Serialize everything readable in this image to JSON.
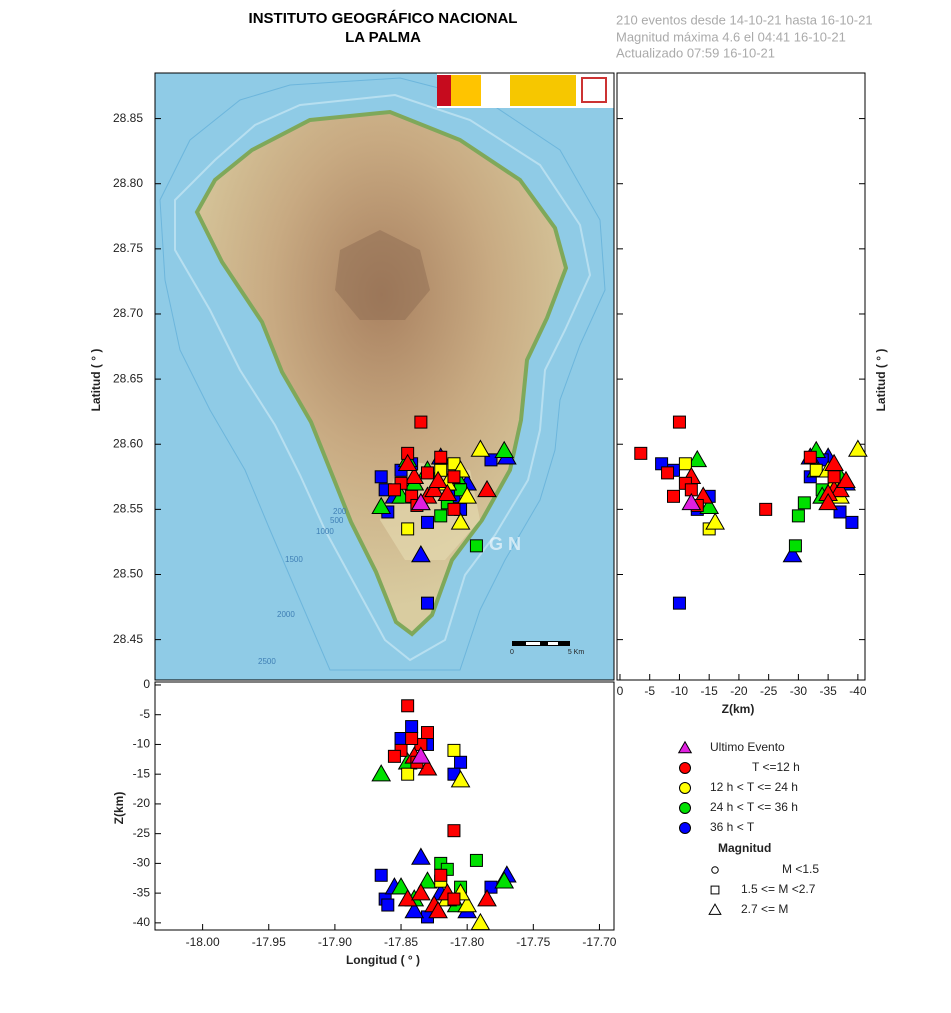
{
  "chart_data": {
    "type": "scatter",
    "title": "INSTITUTO GEOGRÁFICO NACIONAL",
    "subtitle": "LA PALMA",
    "info": [
      "210 eventos desde 14-10-21 hasta 16-10-21",
      "Magnitud máxima 4.6 el 04:41 16-10-21",
      "Actualizado   07:59  16-10-21"
    ],
    "xlabel": "Longitud ( ° )",
    "ylabel": "Latitud ( ° )",
    "zlabel": "Z(km)",
    "xlim": [
      -18.036,
      -17.689
    ],
    "ylim": [
      28.419,
      28.885
    ],
    "zlim": [
      0.5,
      -41.2
    ],
    "xticks": [
      {
        "value": -18,
        "label": "-18.00"
      },
      -17.95,
      {
        "value": -17.9,
        "label": "-17.90"
      },
      -17.85,
      {
        "value": -17.8,
        "label": "-17.80"
      },
      -17.75,
      {
        "value": -17.7,
        "label": "-17.70"
      }
    ],
    "yticks": [
      28.45,
      {
        "value": 28.5,
        "label": "28.50"
      },
      28.55,
      {
        "value": 28.6,
        "label": "28.60"
      },
      28.65,
      {
        "value": 28.7,
        "label": "28.70"
      },
      28.75,
      {
        "value": 28.8,
        "label": "28.80"
      },
      28.85
    ],
    "zticks": [
      0,
      -5,
      -10,
      -15,
      -20,
      -25,
      -30,
      -35,
      -40
    ],
    "series": [
      {
        "name": "36 h <  T",
        "color": "#0000ff",
        "lon": [
          -17.835,
          -17.83,
          -17.865,
          -17.862,
          -17.82,
          -17.782,
          -17.77,
          -17.85,
          -17.842,
          -17.805,
          -17.8,
          -17.86,
          -17.83,
          -17.855,
          -17.81,
          -17.84
        ],
        "lat": [
          28.515,
          28.478,
          28.575,
          28.565,
          28.59,
          28.588,
          28.59,
          28.58,
          28.585,
          28.55,
          28.57,
          28.548,
          28.54,
          28.56,
          28.56,
          28.57
        ],
        "depth": [
          -29,
          -10,
          -32,
          -36,
          -35,
          -34,
          -32,
          -9,
          -7,
          -13,
          -38,
          -37,
          -39,
          -34,
          -15,
          -38
        ],
        "marker": [
          "triangle",
          "square",
          "square",
          "square",
          "triangle",
          "square",
          "triangle",
          "square",
          "square",
          "square",
          "triangle",
          "square",
          "square",
          "triangle",
          "square",
          "triangle"
        ]
      },
      {
        "name": "24 h  < T <= 36 h",
        "color": "#00e000",
        "lon": [
          -17.772,
          -17.793,
          -17.865,
          -17.845,
          -17.82,
          -17.83,
          -17.808,
          -17.805,
          -17.84,
          -17.815,
          -17.85
        ],
        "lat": [
          28.595,
          28.522,
          28.552,
          28.588,
          28.545,
          28.58,
          28.575,
          28.565,
          28.57,
          28.555,
          28.56
        ],
        "depth": [
          -33,
          -29.5,
          -15,
          -13,
          -30,
          -33,
          -37,
          -34,
          -36,
          -31,
          -34
        ],
        "marker": [
          "triangle",
          "square",
          "triangle",
          "triangle",
          "square",
          "triangle",
          "triangle",
          "square",
          "triangle",
          "square",
          "triangle"
        ]
      },
      {
        "name": "12 h  < T <= 24 h",
        "color": "#ffff00",
        "lon": [
          -17.79,
          -17.845,
          -17.805,
          -17.8,
          -17.81,
          -17.815,
          -17.82,
          -17.805
        ],
        "lat": [
          28.596,
          28.535,
          28.54,
          28.56,
          28.585,
          28.57,
          28.58,
          28.58
        ],
        "depth": [
          -40,
          -15,
          -16,
          -37,
          -11,
          -36,
          -33,
          -35
        ],
        "marker": [
          "triangle",
          "square",
          "triangle",
          "triangle",
          "square",
          "triangle",
          "square",
          "triangle"
        ]
      },
      {
        "name": "T <=12 h",
        "color": "#ff0000",
        "lon": [
          -17.835,
          -17.845,
          -17.81,
          -17.785,
          -17.82,
          -17.84,
          -17.83,
          -17.825,
          -17.85,
          -17.842,
          -17.845,
          -17.822,
          -17.83,
          -17.838,
          -17.815,
          -17.855,
          -17.835,
          -17.81
        ],
        "lat": [
          28.617,
          28.593,
          28.55,
          28.565,
          28.59,
          28.575,
          28.56,
          28.565,
          28.57,
          28.56,
          28.585,
          28.572,
          28.578,
          28.553,
          28.562,
          28.565,
          28.555,
          28.575
        ],
        "depth": [
          -10,
          -3.5,
          -24.5,
          -36,
          -32,
          -12,
          -14,
          -37,
          -11,
          -9,
          -36,
          -38,
          -8,
          -13,
          -35,
          -12,
          -35,
          -36
        ],
        "marker": [
          "square",
          "square",
          "square",
          "triangle",
          "square",
          "triangle",
          "triangle",
          "triangle",
          "square",
          "square",
          "triangle",
          "triangle",
          "square",
          "square",
          "triangle",
          "square",
          "triangle",
          "square"
        ]
      },
      {
        "name": "Ultimo Evento",
        "color": "#e020e0",
        "lon": [
          -17.835
        ],
        "lat": [
          28.555
        ],
        "depth": [
          -12
        ],
        "marker": [
          "triangle"
        ]
      }
    ],
    "magnitude_title": "Magnitud",
    "magnitude_legend": [
      {
        "label": "M <1.5",
        "marker": "circle"
      },
      {
        "label": "1.5 <= M <2.7",
        "marker": "square"
      },
      {
        "label": "2.7 <= M",
        "marker": "triangle"
      }
    ]
  },
  "map": {
    "contour_labels": [
      "200",
      "500",
      "1000",
      "1500",
      "2000",
      "2500"
    ],
    "watermark": "G N",
    "scale_labels": [
      "0",
      "5 Km"
    ]
  }
}
